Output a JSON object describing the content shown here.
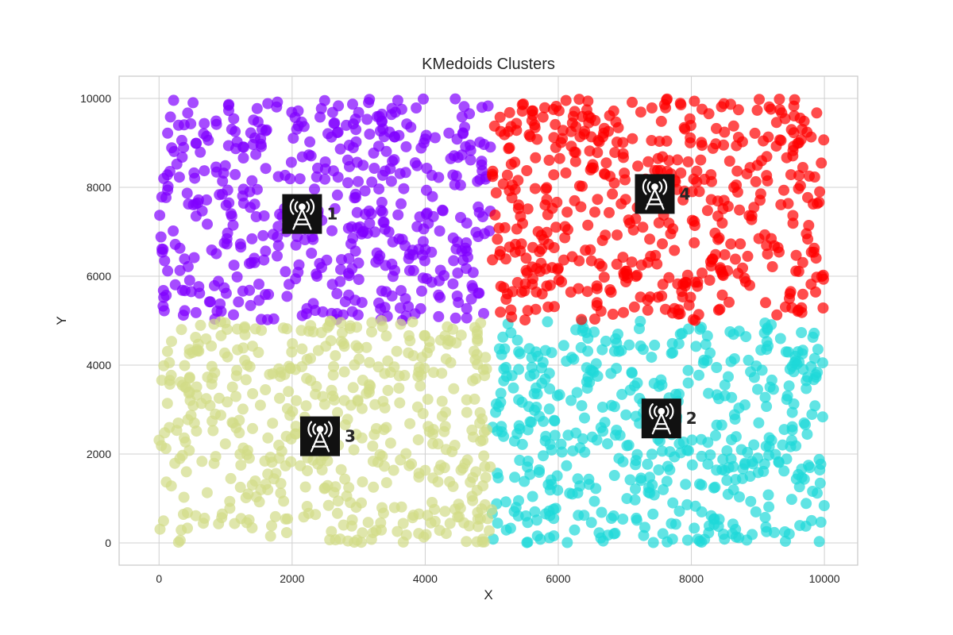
{
  "chart_data": {
    "type": "scatter",
    "title": "KMedoids Clusters",
    "xlabel": "X",
    "ylabel": "Y",
    "xlim": [
      -600,
      10500
    ],
    "ylim": [
      -500,
      10500
    ],
    "xticks": [
      0,
      2000,
      4000,
      6000,
      8000,
      10000
    ],
    "yticks": [
      0,
      2000,
      4000,
      6000,
      8000,
      10000
    ],
    "grid": true,
    "point_opacity": 0.7,
    "clusters": [
      {
        "label": "1",
        "color": "#8000ff",
        "x_range": [
          0,
          5000
        ],
        "y_range": [
          5000,
          10000
        ],
        "approx_count": 500
      },
      {
        "label": "2",
        "color": "#1ed8d8",
        "x_range": [
          5000,
          10000
        ],
        "y_range": [
          0,
          5000
        ],
        "approx_count": 500
      },
      {
        "label": "3",
        "color": "#d2db87",
        "x_range": [
          0,
          5000
        ],
        "y_range": [
          0,
          5000
        ],
        "approx_count": 500
      },
      {
        "label": "4",
        "color": "#ff0000",
        "x_range": [
          5000,
          10000
        ],
        "y_range": [
          5000,
          10000
        ],
        "approx_count": 500
      }
    ],
    "medoids": [
      {
        "label": "1",
        "x": 2150,
        "y": 7400
      },
      {
        "label": "2",
        "x": 7550,
        "y": 2800
      },
      {
        "label": "3",
        "x": 2420,
        "y": 2400
      },
      {
        "label": "4",
        "x": 7450,
        "y": 7850
      }
    ],
    "medoid_icon": "radio-tower-icon"
  }
}
